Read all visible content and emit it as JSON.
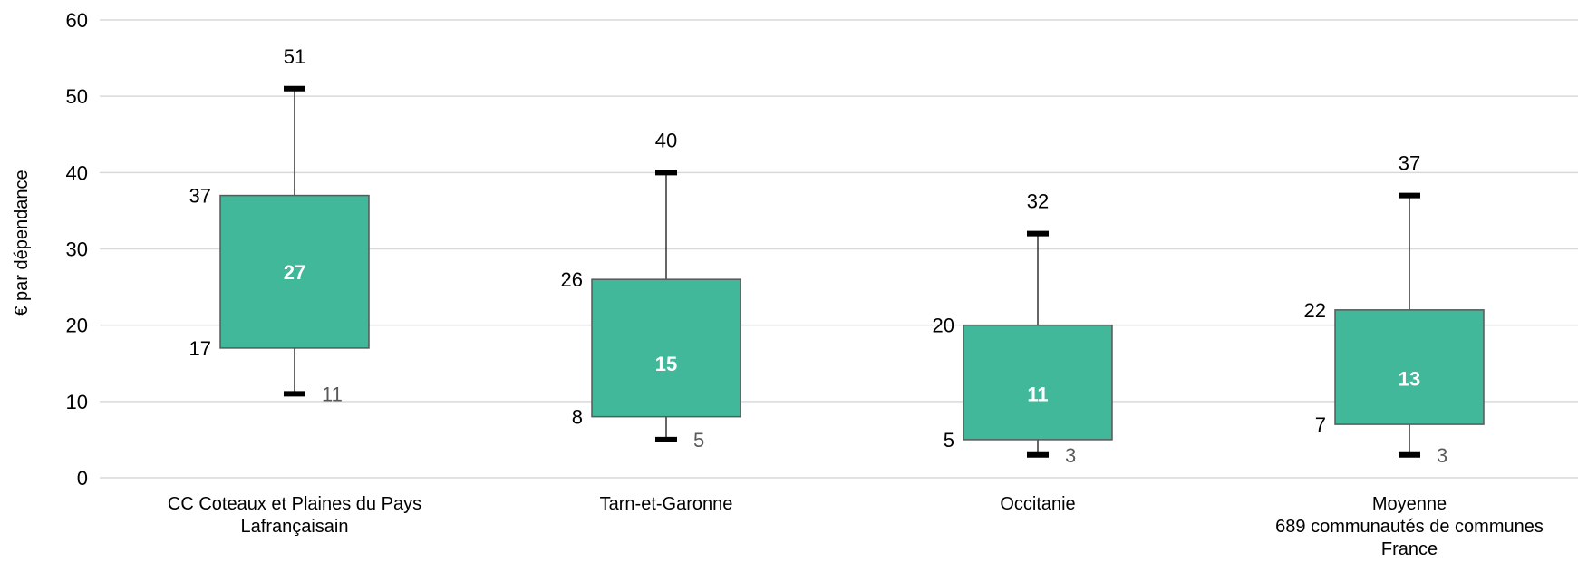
{
  "chart_data": {
    "type": "boxplot",
    "ylabel": "€ par dépendance",
    "ylim": [
      0,
      60
    ],
    "yticks": [
      0,
      10,
      20,
      30,
      40,
      50,
      60
    ],
    "grid": true,
    "colors": {
      "box": "#41b89a",
      "box_border": "#595959",
      "whisker": "#333333",
      "cap": "#000000",
      "grid": "#d9d9d9"
    },
    "categories": [
      {
        "label_lines": [
          "CC Coteaux et Plaines du Pays",
          "Lafrançaisain"
        ],
        "min": 11,
        "q1": 17,
        "median": 27,
        "q3": 37,
        "max": 51
      },
      {
        "label_lines": [
          "Tarn-et-Garonne"
        ],
        "min": 5,
        "q1": 8,
        "median": 15,
        "q3": 26,
        "max": 40
      },
      {
        "label_lines": [
          "Occitanie"
        ],
        "min": 3,
        "q1": 5,
        "median": 11,
        "q3": 20,
        "max": 32
      },
      {
        "label_lines": [
          "Moyenne",
          "689 communautés de communes",
          "France"
        ],
        "min": 3,
        "q1": 7,
        "median": 13,
        "q3": 22,
        "max": 37
      }
    ]
  }
}
